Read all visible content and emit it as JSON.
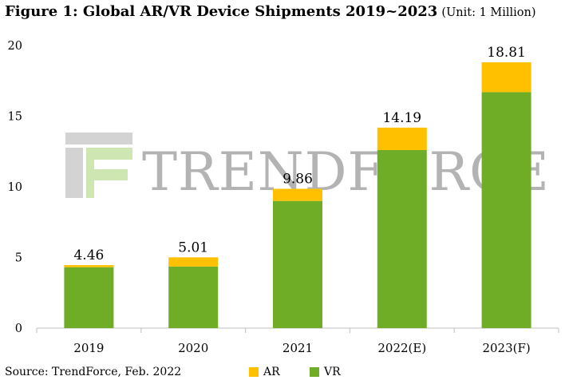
{
  "title": "Figure 1: Global AR/VR Device Shipments 2019~2023",
  "unit": "(Unit: 1 Million)",
  "source": "Source: TrendForce, Feb. 2022",
  "watermark": "TRENDFORCE",
  "colors": {
    "AR": "#FFC000",
    "VR": "#70AD27",
    "axis": "#BFBFBF"
  },
  "chart_data": {
    "type": "bar",
    "stacked": true,
    "categories": [
      "2019",
      "2020",
      "2021",
      "2022(E)",
      "2023(F)"
    ],
    "series": [
      {
        "name": "VR",
        "values": [
          4.31,
          4.36,
          9.0,
          12.6,
          16.7
        ]
      },
      {
        "name": "AR",
        "values": [
          0.15,
          0.65,
          0.86,
          1.59,
          2.11
        ]
      }
    ],
    "totals": [
      "4.46",
      "5.01",
      "9.86",
      "14.19",
      "18.81"
    ],
    "ylim": [
      0,
      20
    ],
    "yticks": [
      "0",
      "5",
      "10",
      "15",
      "20"
    ],
    "grid": false,
    "legend": [
      "AR",
      "VR"
    ],
    "legend_position": "bottom"
  }
}
